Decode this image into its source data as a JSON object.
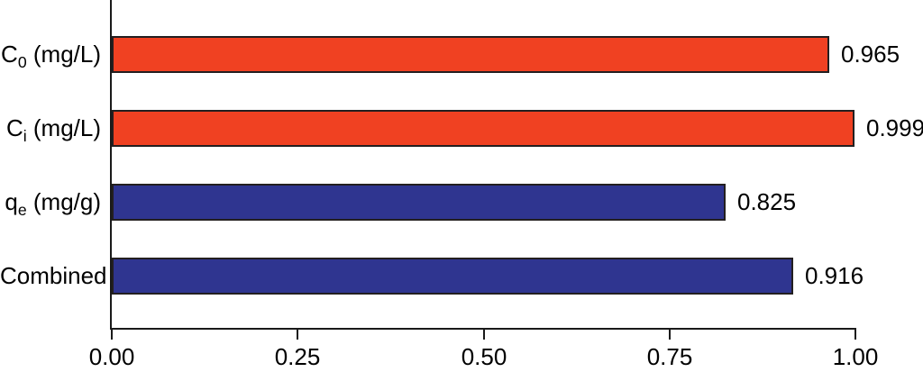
{
  "chart_data": {
    "type": "bar",
    "orientation": "horizontal",
    "title": "",
    "xlabel": "",
    "ylabel": "",
    "xlim": [
      0.0,
      1.0
    ],
    "grid": false,
    "legend": "none",
    "categories": [
      "C_0 (mg/L)",
      "C_i (mg/L)",
      "q_e (mg/g)",
      "Combined"
    ],
    "category_parts": [
      [
        {
          "t": "C"
        },
        {
          "t": "0",
          "sub": true
        },
        {
          "t": " (mg/L)"
        }
      ],
      [
        {
          "t": "C"
        },
        {
          "t": "i",
          "sub": true
        },
        {
          "t": " (mg/L)"
        }
      ],
      [
        {
          "t": "q"
        },
        {
          "t": "e",
          "sub": true
        },
        {
          "t": " (mg/g)"
        }
      ],
      [
        {
          "t": "Combined"
        }
      ]
    ],
    "values": [
      0.965,
      0.999,
      0.825,
      0.916
    ],
    "value_labels": [
      "0.965",
      "0.999",
      "0.825",
      "0.916"
    ],
    "bar_colors": [
      "#F04122",
      "#F04122",
      "#2F3590",
      "#2F3590"
    ],
    "bar_border_color": "#231f20",
    "xticks": {
      "values": [
        0.0,
        0.25,
        0.5,
        0.75,
        1.0
      ],
      "labels": [
        "0.00",
        "0.25",
        "0.50",
        "0.75",
        "1.00"
      ]
    },
    "colors": {
      "red_bar": "#F04122",
      "blue_bar": "#2F3590",
      "axis": "#1a1a1a",
      "text": "#000000",
      "background": "#ffffff"
    }
  }
}
